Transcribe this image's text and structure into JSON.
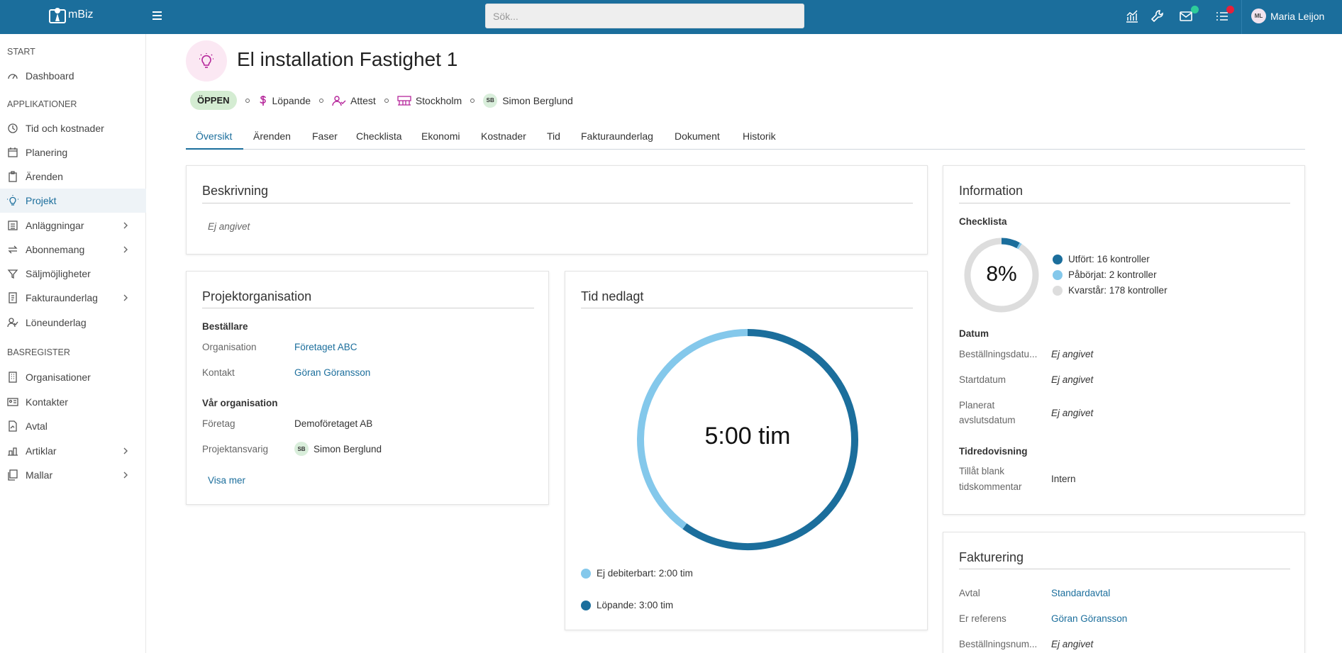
{
  "app": {
    "name": "mBiz"
  },
  "search": {
    "placeholder": "Sök..."
  },
  "user": {
    "initials": "ML",
    "name": "Maria Leijon"
  },
  "colors": {
    "brand": "#1b6e9c",
    "light": "#84c8eb",
    "remaining": "#dddddd",
    "status_open": "#d4ecd2",
    "notif_green": "#2ecc9a",
    "notif_red": "#e8203a"
  },
  "topbar_icons": [
    "chart-icon",
    "wrench-icon",
    "mail-icon",
    "list-icon"
  ],
  "sidebar": {
    "sections": [
      "START",
      "APPLIKATIONER",
      "BASREGISTER"
    ],
    "items": [
      {
        "label": "Dashboard",
        "icon": "dashboard-icon"
      },
      {
        "label": "Tid och kostnader",
        "icon": "clock-icon"
      },
      {
        "label": "Planering",
        "icon": "calendar-icon"
      },
      {
        "label": "Ärenden",
        "icon": "clipboard-icon"
      },
      {
        "label": "Projekt",
        "icon": "lightbulb-icon",
        "active": true
      },
      {
        "label": "Anläggningar",
        "icon": "building-icon",
        "expandable": true
      },
      {
        "label": "Abonnemang",
        "icon": "repeat-icon",
        "expandable": true
      },
      {
        "label": "Säljmöjligheter",
        "icon": "funnel-icon"
      },
      {
        "label": "Fakturaunderlag",
        "icon": "invoice-icon",
        "expandable": true
      },
      {
        "label": "Löneunderlag",
        "icon": "user-check-icon"
      },
      {
        "label": "Organisationer",
        "icon": "organization-icon"
      },
      {
        "label": "Kontakter",
        "icon": "contact-card-icon"
      },
      {
        "label": "Avtal",
        "icon": "contract-icon"
      },
      {
        "label": "Artiklar",
        "icon": "articles-icon",
        "expandable": true
      },
      {
        "label": "Mallar",
        "icon": "templates-icon",
        "expandable": true
      }
    ]
  },
  "project": {
    "title": "El installation Fastighet 1",
    "status": "ÖPPEN",
    "billing": "Löpande",
    "attest": "Attest",
    "location": "Stockholm",
    "manager_initials": "SB",
    "manager": "Simon Berglund"
  },
  "tabs": [
    "Översikt",
    "Ärenden",
    "Faser",
    "Checklista",
    "Ekonomi",
    "Kostnader",
    "Tid",
    "Fakturaunderlag",
    "Dokument",
    "Historik"
  ],
  "description": {
    "title": "Beskrivning",
    "value": "Ej angivet"
  },
  "organisation": {
    "title": "Projektorganisation",
    "orderer_head": "Beställare",
    "org_label": "Organisation",
    "org_value": "Företaget ABC",
    "contact_label": "Kontakt",
    "contact_value": "Göran Göransson",
    "our_head": "Vår organisation",
    "company_label": "Företag",
    "company_value": "Demoföretaget AB",
    "pm_label": "Projektansvarig",
    "pm_initials": "SB",
    "pm_value": "Simon Berglund",
    "more": "Visa mer"
  },
  "time": {
    "title": "Tid nedlagt",
    "total": "5:00 tim",
    "legend": [
      {
        "label": "Ej debiterbart: 2:00 tim",
        "hours": 2,
        "color": "#84c8eb"
      },
      {
        "label": "Löpande: 3:00 tim",
        "hours": 3,
        "color": "#1b6e9c"
      }
    ]
  },
  "information": {
    "title": "Information",
    "checklist_head": "Checklista",
    "checklist_percent": "8%",
    "checklist": [
      {
        "label": "Utfört: 16 kontroller",
        "count": 16,
        "color": "#1b6e9c"
      },
      {
        "label": "Påbörjat: 2 kontroller",
        "count": 2,
        "color": "#84c8eb"
      },
      {
        "label": "Kvarstår: 178 kontroller",
        "count": 178,
        "color": "#dddddd"
      }
    ],
    "date_head": "Datum",
    "order_date_label": "Beställningsdatu...",
    "order_date_value": "Ej angivet",
    "start_label": "Startdatum",
    "start_value": "Ej angivet",
    "planned_label_1": "Planerat",
    "planned_label_2": "avslutsdatum",
    "planned_value": "Ej angivet",
    "time_head": "Tidredovisning",
    "blank_label_1": "Tillåt blank",
    "blank_label_2": "tidskommentar",
    "blank_value": "Intern"
  },
  "invoicing": {
    "title": "Fakturering",
    "agreement_label": "Avtal",
    "agreement_value": "Standardavtal",
    "ref_label": "Er referens",
    "ref_value": "Göran Göransson",
    "order_no_label": "Beställningsnum...",
    "order_no_value": "Ej angivet"
  }
}
